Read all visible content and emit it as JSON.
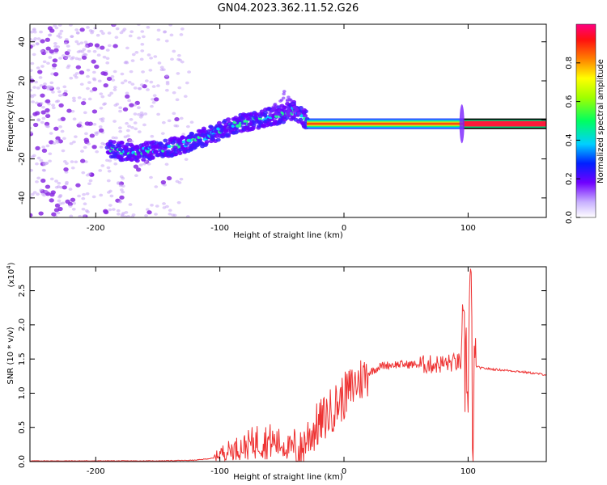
{
  "title": "GN04.2023.362.11.52.G26",
  "colors": {
    "snr_line": "#ee3333",
    "scatter_point": "#8a2be2"
  },
  "chart_data": [
    {
      "type": "heatmap",
      "xlabel": "Height of straight line (km)",
      "ylabel": "Frequency (Hz)",
      "xlim": [
        -253,
        163
      ],
      "ylim": [
        -50,
        49
      ],
      "x_ticks": [
        -200,
        -100,
        0,
        100
      ],
      "y_ticks": [
        -40,
        -20,
        0,
        20,
        40
      ],
      "track": {
        "x": [
          -190,
          -170,
          -150,
          -130,
          -110,
          -90,
          -70,
          -50,
          -40,
          -30,
          -20,
          0,
          20,
          40,
          60,
          80,
          95,
          160
        ],
        "y": [
          -15,
          -17,
          -15,
          -13,
          -8,
          -3,
          0,
          3,
          5,
          0,
          -2,
          -2,
          -2,
          -2,
          -2,
          -3,
          -2,
          -2
        ]
      },
      "colorbar": {
        "label": "Normalized spectral amplitude",
        "range": [
          0,
          1
        ],
        "ticks": [
          "0.0",
          "0.2",
          "0.4",
          "0.6",
          "0.8"
        ]
      }
    },
    {
      "type": "line",
      "xlabel": "Height of straight line (km)",
      "ylabel": "SNR (10 * v/v)",
      "exponent_label": "(x10",
      "exponent_power": "4",
      "exponent_close": ")",
      "xlim": [
        -253,
        163
      ],
      "ylim": [
        0,
        2.85
      ],
      "x_ticks": [
        -200,
        -100,
        0,
        100
      ],
      "y_ticks": [
        "0.0",
        "0.5",
        "1.0",
        "1.5",
        "2.0",
        "2.5"
      ],
      "series": [
        {
          "x": [
            -253,
            -200,
            -150,
            -120,
            -105,
            -100,
            -90,
            -80,
            -70,
            -60,
            -50,
            -40,
            -35,
            -30,
            -25,
            -20,
            -15,
            -10,
            -5,
            0,
            10,
            20,
            30,
            40,
            50,
            60,
            70,
            80,
            90,
            95,
            100,
            102,
            104,
            106,
            110,
            120,
            140,
            163
          ],
          "y": [
            0.01,
            0.01,
            0.01,
            0.02,
            0.05,
            0.12,
            0.18,
            0.22,
            0.3,
            0.3,
            0.25,
            0.18,
            0.12,
            0.35,
            0.45,
            0.55,
            0.65,
            0.75,
            0.85,
            0.95,
            1.15,
            1.3,
            1.4,
            1.42,
            1.42,
            1.42,
            1.42,
            1.43,
            1.45,
            1.45,
            1.4,
            2.85,
            0.3,
            1.4,
            1.37,
            1.35,
            1.32,
            1.27
          ]
        }
      ]
    }
  ]
}
